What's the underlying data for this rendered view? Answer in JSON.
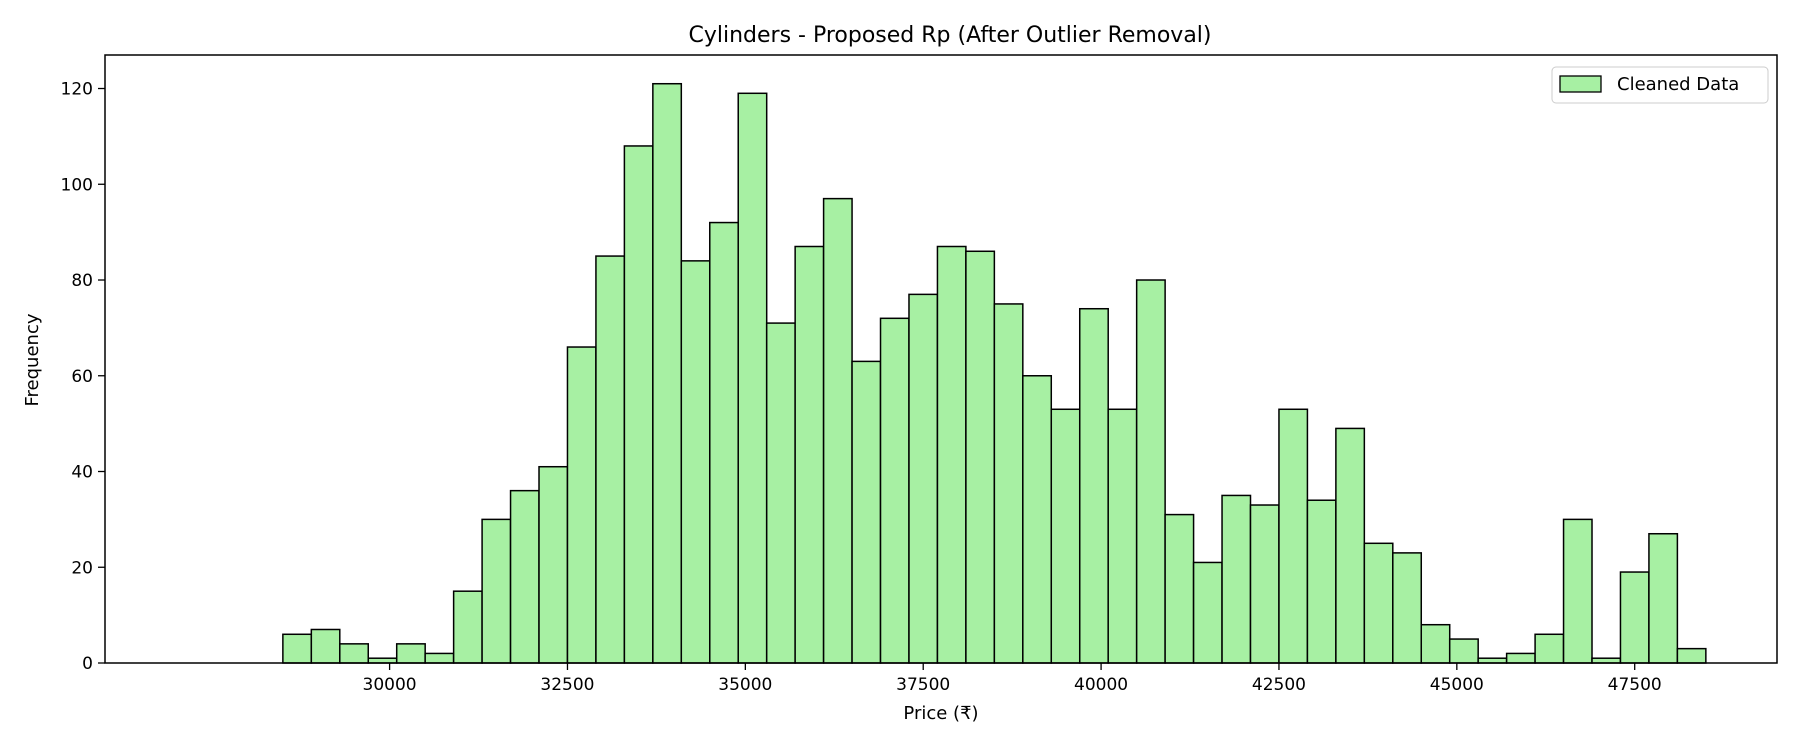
{
  "chart_data": {
    "type": "bar",
    "title": "Cylinders - Proposed Rp (After Outlier Removal)",
    "xlabel": "Price (₹)",
    "ylabel": "Frequency",
    "xlim": [
      26000,
      49500
    ],
    "ylim": [
      0,
      127
    ],
    "grid": false,
    "legend": {
      "placement": "top-right",
      "entries": [
        "Cleaned Data"
      ]
    },
    "bar_color": "#a7f0a3",
    "edge_color": "#000000",
    "xticks": [
      30000,
      32500,
      35000,
      37500,
      40000,
      42500,
      45000,
      47500
    ],
    "yticks": [
      0,
      20,
      40,
      60,
      80,
      100,
      120
    ],
    "series": [
      {
        "name": "Cleaned Data",
        "bin_start": 28500,
        "bin_width": 400,
        "values": [
          6,
          7,
          4,
          1,
          4,
          2,
          15,
          30,
          36,
          41,
          66,
          85,
          108,
          121,
          84,
          92,
          119,
          71,
          87,
          97,
          63,
          72,
          77,
          87,
          86,
          75,
          60,
          53,
          74,
          53,
          80,
          31,
          21,
          35,
          33,
          53,
          34,
          49,
          25,
          23,
          8,
          5,
          1,
          2,
          6,
          30,
          1,
          19,
          27,
          3
        ]
      }
    ]
  }
}
